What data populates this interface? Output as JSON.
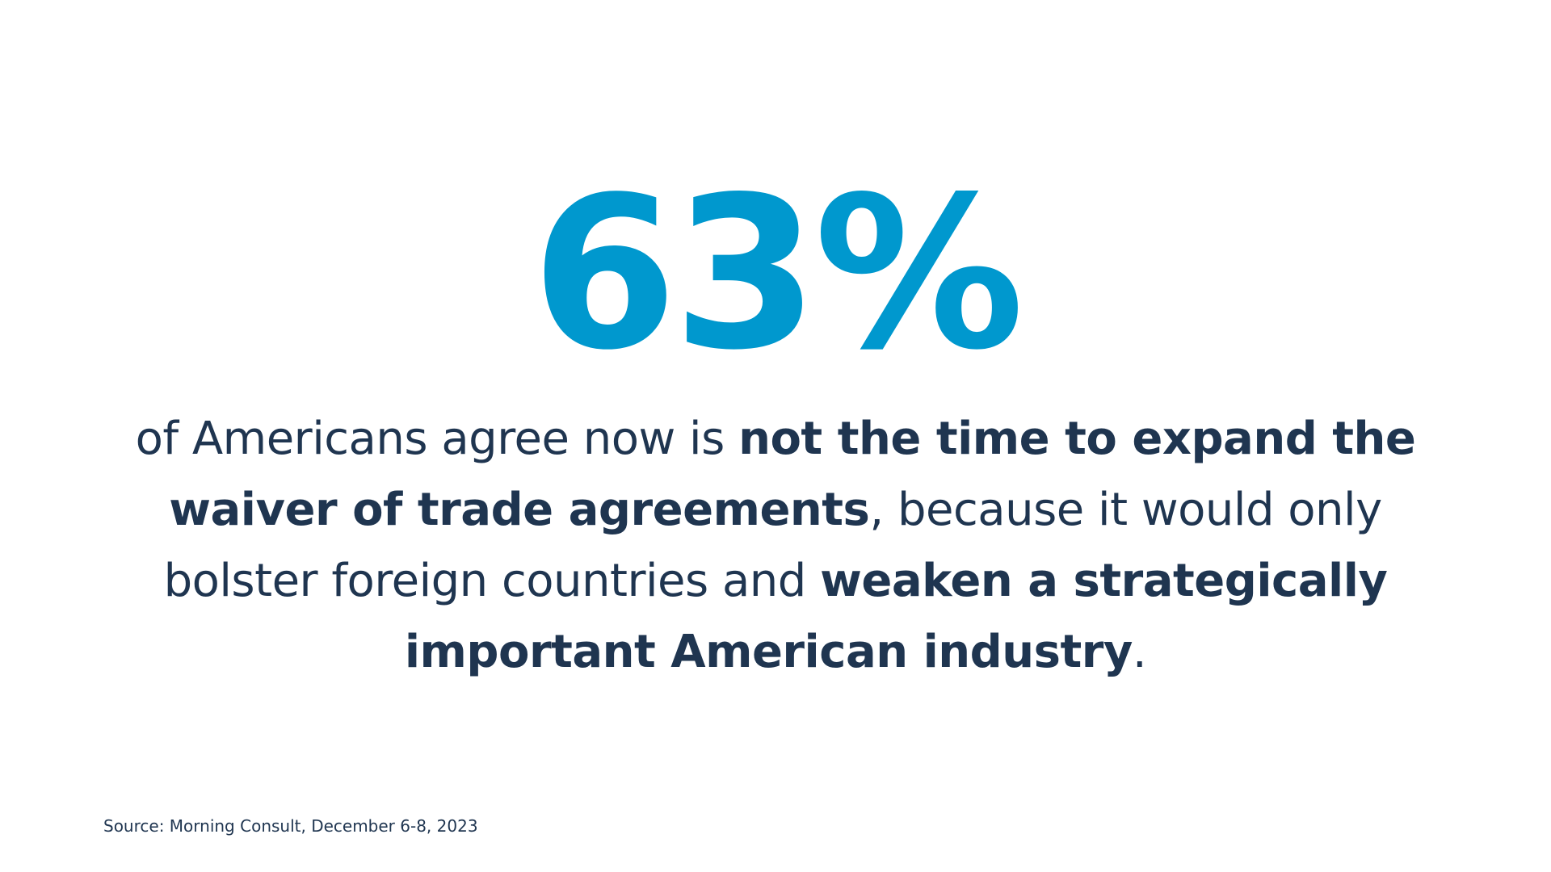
{
  "headline": {
    "value": "63%"
  },
  "statement": {
    "part1": "of Americans agree now is ",
    "bold1": "not the time to expand the waiver of trade agreements",
    "part2": ", because it would only bolster foreign countries and ",
    "bold2": "weaken a strategically important American industry",
    "part3": "."
  },
  "source": {
    "text": "Source: Morning Consult, December 6-8, 2023"
  },
  "colors": {
    "accent": "#0098ce",
    "text": "#1f3550",
    "background": "#ffffff"
  }
}
